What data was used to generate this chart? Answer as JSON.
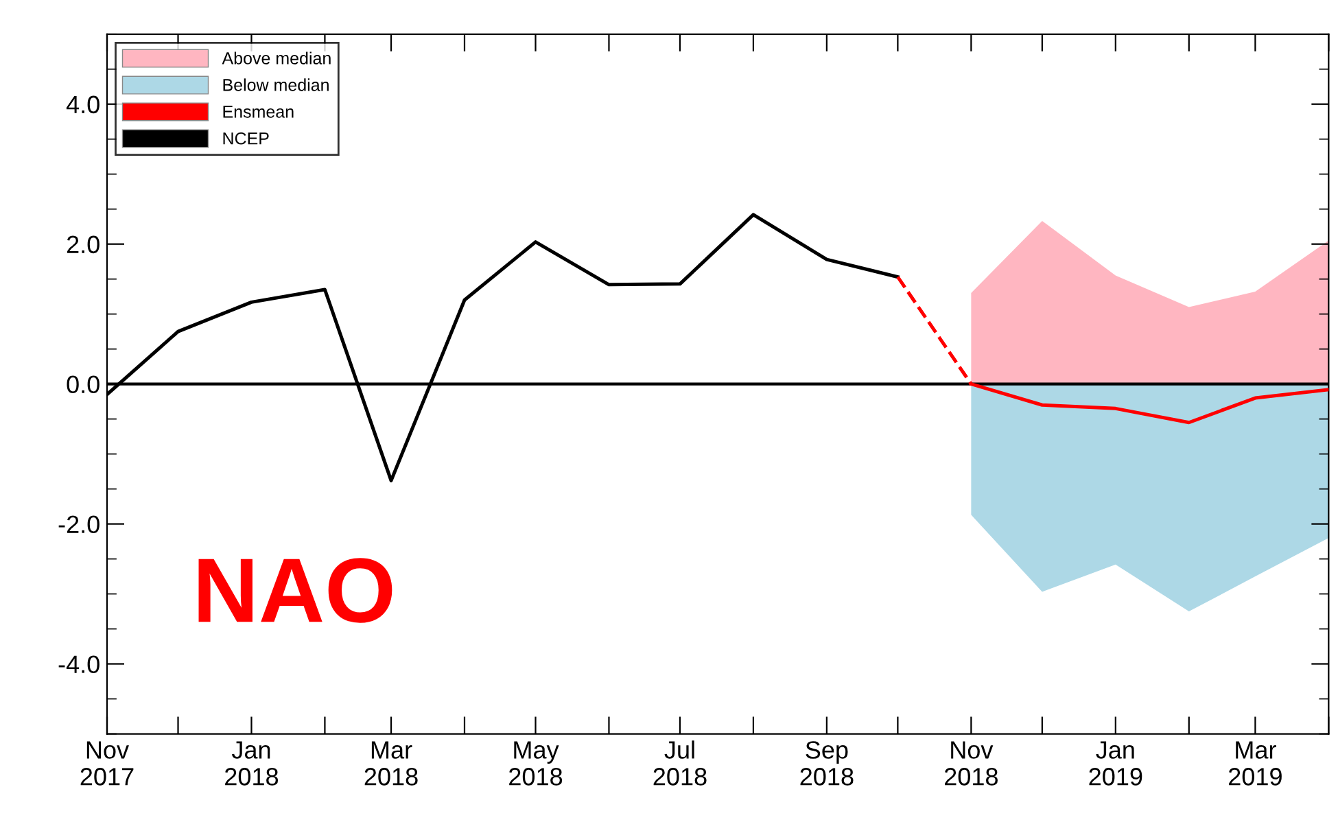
{
  "chart_data": {
    "type": "line",
    "annotations": [
      "NAO"
    ],
    "xlim": [
      "2017-11",
      "2019-04"
    ],
    "xticks": [
      {
        "value": "2017-11",
        "label": "Nov\n2017"
      },
      {
        "value": "2017-12",
        "label": null
      },
      {
        "value": "2018-01",
        "label": "Jan\n2018"
      },
      {
        "value": "2018-02",
        "label": null
      },
      {
        "value": "2018-03",
        "label": "Mar\n2018"
      },
      {
        "value": "2018-04",
        "label": null
      },
      {
        "value": "2018-05",
        "label": "May\n2018"
      },
      {
        "value": "2018-06",
        "label": null
      },
      {
        "value": "2018-07",
        "label": "Jul\n2018"
      },
      {
        "value": "2018-08",
        "label": null
      },
      {
        "value": "2018-09",
        "label": "Sep\n2018"
      },
      {
        "value": "2018-10",
        "label": null
      },
      {
        "value": "2018-11",
        "label": "Nov\n2018"
      },
      {
        "value": "2018-12",
        "label": null
      },
      {
        "value": "2019-01",
        "label": "Jan\n2019"
      },
      {
        "value": "2019-02",
        "label": null
      },
      {
        "value": "2019-03",
        "label": "Mar\n2019"
      },
      {
        "value": "2019-04",
        "label": null
      }
    ],
    "ylim": [
      -5,
      5
    ],
    "yticks": [
      {
        "value": -4,
        "label": "-4.0"
      },
      {
        "value": -2,
        "label": "-2.0"
      },
      {
        "value": 0,
        "label": "0.0"
      },
      {
        "value": 2,
        "label": "2.0"
      },
      {
        "value": 4,
        "label": "4.0"
      }
    ],
    "legend": "top left",
    "ref_lines": [
      {
        "axis": "y",
        "value": 0,
        "color": "#000000"
      }
    ],
    "series": [
      {
        "name": "Above median",
        "type": "area",
        "color": "#ffb6c1",
        "x": [
          "2018-11",
          "2018-12",
          "2019-01",
          "2019-02",
          "2019-03",
          "2019-04"
        ],
        "values": [
          1.3,
          2.33,
          1.55,
          1.1,
          1.32,
          2.05
        ]
      },
      {
        "name": "Below median",
        "type": "area",
        "color": "#add8e6",
        "x": [
          "2018-11",
          "2018-12",
          "2019-01",
          "2019-02",
          "2019-03",
          "2019-04"
        ],
        "values": [
          -1.87,
          -2.97,
          -2.58,
          -3.25,
          -2.75,
          -2.2
        ]
      },
      {
        "name": "Ensmean",
        "color": "#ff0000",
        "line_style": "solid",
        "x": [
          "2018-11",
          "2018-12",
          "2019-01",
          "2019-02",
          "2019-03",
          "2019-04"
        ],
        "values": [
          0,
          -0.3,
          -0.35,
          -0.55,
          -0.2,
          -0.08
        ]
      },
      {
        "name": "NCEP",
        "color": "#000000",
        "line_style": "solid",
        "x": [
          "2017-11",
          "2017-12",
          "2018-01",
          "2018-02",
          "2018-03",
          "2018-04",
          "2018-05",
          "2018-06",
          "2018-07",
          "2018-08",
          "2018-09",
          "2018-10"
        ],
        "values": [
          -0.15,
          0.75,
          1.17,
          1.35,
          -1.38,
          1.2,
          2.03,
          1.42,
          1.43,
          2.42,
          1.78,
          1.53
        ]
      },
      {
        "color": "#ff0000",
        "line_style": "dashed",
        "x": [
          "2018-10",
          "2018-11"
        ],
        "values": [
          1.53,
          0
        ]
      }
    ]
  }
}
